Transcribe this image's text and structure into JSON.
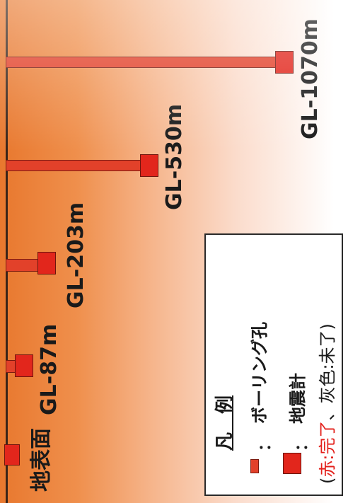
{
  "labels": {
    "surface": "地表面",
    "gl87": "GL-87m",
    "gl203": "GL-203m",
    "gl530": "GL-530m",
    "gl1070": "GL-1070m"
  },
  "legend": {
    "title": "凡　例",
    "colon": "：",
    "borehole": "ボーリング孔",
    "seismometer": "地震計",
    "status_open": "(",
    "status_red_label": "赤:完了",
    "status_sep": "、",
    "status_gray_label": "灰色:未了",
    "status_close": ")"
  },
  "colors": {
    "borehole": "#e2412a",
    "seismometer": "#e2261c",
    "completed_text": "#e3201b"
  },
  "depths_m": [
    0,
    87,
    203,
    530,
    1070
  ]
}
